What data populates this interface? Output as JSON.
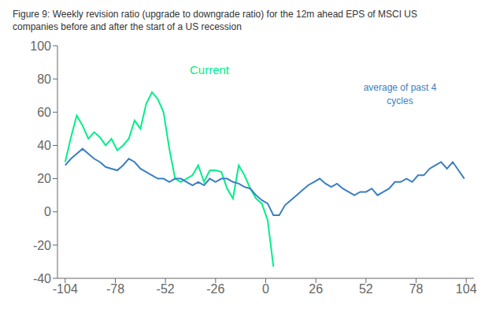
{
  "chart_data": {
    "type": "line",
    "title": "Figure 9: Weekly revision ratio (upgrade to downgrade ratio) for the 12m ahead EPS of MSCI US\ncompanies before and after the start of a US recession",
    "series": [
      {
        "name": "Current",
        "color": "#00ee88",
        "x": [
          -104,
          -101,
          -98,
          -95,
          -92,
          -89,
          -86,
          -83,
          -80,
          -77,
          -74,
          -71,
          -68,
          -65,
          -62,
          -59,
          -56,
          -53,
          -50,
          -47,
          -44,
          -41,
          -38,
          -35,
          -32,
          -29,
          -26,
          -23,
          -20,
          -17,
          -14,
          -11,
          -8,
          -5,
          -2,
          1,
          4,
          7
        ],
        "values": [
          30,
          45,
          58,
          52,
          44,
          48,
          45,
          40,
          44,
          37,
          40,
          44,
          55,
          50,
          65,
          72,
          68,
          60,
          38,
          20,
          18,
          20,
          22,
          28,
          18,
          25,
          25,
          24,
          14,
          8,
          28,
          22,
          14,
          8,
          5,
          -5,
          -33,
          null
        ]
      },
      {
        "name": "average of past 4\ncycles",
        "color": "#3a7fc1",
        "x": [
          -104,
          -101,
          -98,
          -95,
          -92,
          -89,
          -86,
          -83,
          -80,
          -77,
          -74,
          -71,
          -68,
          -65,
          -62,
          -59,
          -56,
          -53,
          -50,
          -47,
          -44,
          -41,
          -38,
          -35,
          -32,
          -29,
          -26,
          -23,
          -20,
          -17,
          -14,
          -11,
          -8,
          -5,
          -2,
          1,
          4,
          7,
          10,
          13,
          16,
          19,
          22,
          25,
          28,
          31,
          34,
          37,
          40,
          43,
          46,
          49,
          52,
          55,
          58,
          61,
          64,
          67,
          70,
          73,
          76,
          79,
          82,
          85,
          88,
          91,
          94,
          97,
          100,
          103
        ],
        "values": [
          28,
          32,
          35,
          38,
          35,
          32,
          30,
          27,
          26,
          25,
          28,
          32,
          30,
          26,
          24,
          22,
          20,
          20,
          18,
          20,
          20,
          18,
          16,
          18,
          16,
          20,
          18,
          20,
          20,
          18,
          17,
          15,
          14,
          10,
          7,
          5,
          -2,
          -2,
          4,
          7,
          10,
          13,
          16,
          18,
          20,
          17,
          15,
          17,
          14,
          12,
          10,
          12,
          12,
          14,
          10,
          12,
          14,
          18,
          18,
          20,
          18,
          22,
          22,
          26,
          28,
          30,
          26,
          30,
          25,
          20
        ]
      }
    ],
    "xlim": [
      -108,
      108
    ],
    "ylim": [
      -40,
      100
    ],
    "xticks": [
      -104,
      -78,
      -52,
      -26,
      0,
      26,
      52,
      78,
      104
    ],
    "yticks": [
      -40,
      -20,
      0,
      20,
      40,
      60,
      80,
      100
    ],
    "grid": false
  }
}
